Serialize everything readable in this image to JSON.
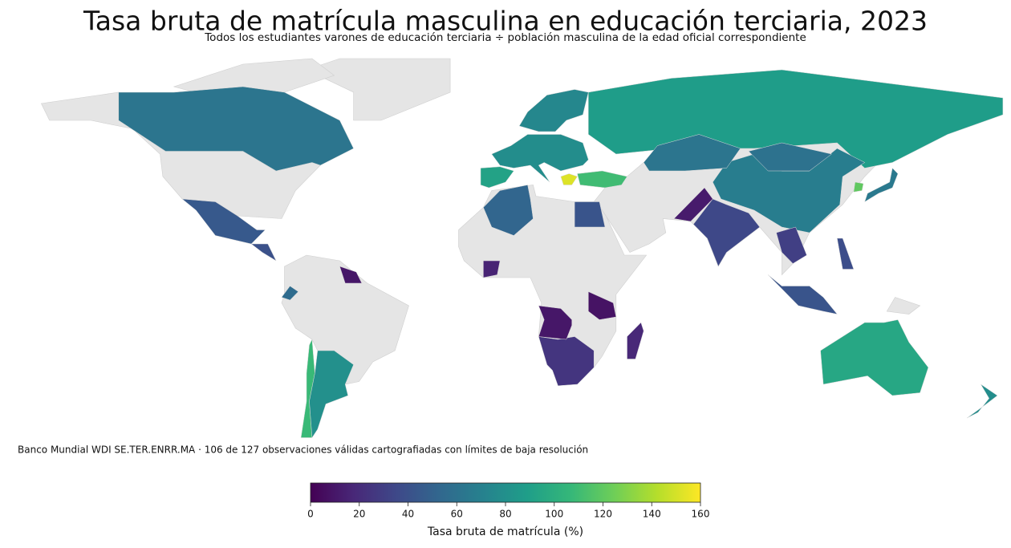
{
  "chart_data": {
    "type": "choropleth",
    "title": "Tasa bruta de matrícula masculina en educación terciaria, 2023",
    "subtitle": "Todos los estudiantes varones de educación terciaria ÷ población masculina de la edad oficial correspondiente",
    "note": "Banco Mundial WDI SE.TER.ENRR.MA · 106 de 127 observaciones válidas cartografiadas con límites de baja resolución",
    "colormap": "viridis",
    "values": [
      62,
      88,
      45,
      95,
      68,
      62,
      60,
      35,
      12,
      110,
      152,
      78,
      92,
      74,
      52,
      42,
      25,
      10,
      8,
      18,
      108,
      80,
      65,
      120,
      42,
      56,
      10,
      16,
      30,
      78,
      38,
      40
    ],
    "clim": [
      0,
      160
    ],
    "cticks": [
      0,
      20,
      40,
      60,
      80,
      100,
      120,
      140,
      160
    ],
    "colorbar_label": "Tasa bruta de matrícula (%)"
  }
}
